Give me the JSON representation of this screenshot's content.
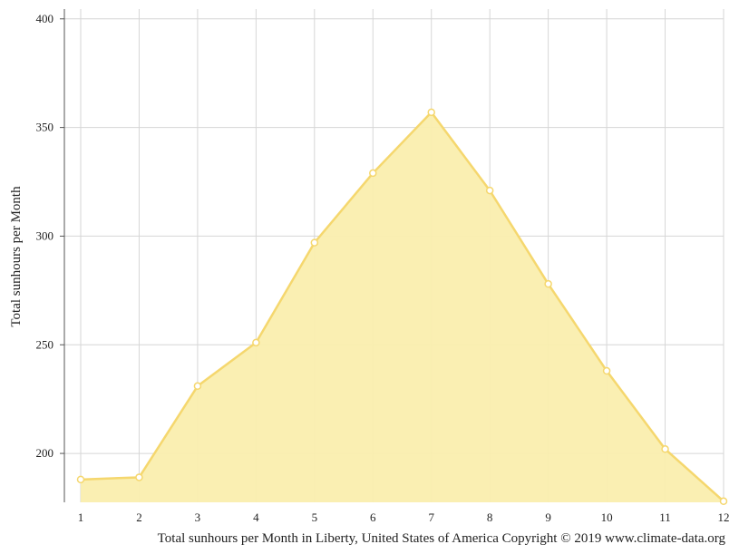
{
  "chart_data": {
    "type": "area",
    "title": "",
    "xlabel": "",
    "ylabel": "Total sunhours per Month",
    "caption": "Total sunhours per Month in Liberty, United States of America Copyright © 2019 www.climate-data.org",
    "x": [
      1,
      2,
      3,
      4,
      5,
      6,
      7,
      8,
      9,
      10,
      11,
      12
    ],
    "x_tick_labels": [
      "1",
      "2",
      "3",
      "4",
      "5",
      "6",
      "7",
      "8",
      "9",
      "10",
      "11",
      "12"
    ],
    "y_ticks": [
      200,
      250,
      300,
      350,
      400
    ],
    "y_tick_labels": [
      "200",
      "250",
      "300",
      "350",
      "400"
    ],
    "ylim": [
      177.5,
      404.5
    ],
    "xlim": [
      1,
      12
    ],
    "grid": true,
    "legend": "none",
    "series": [
      {
        "values": [
          188,
          189,
          231,
          251,
          297,
          329,
          357,
          321,
          278,
          238,
          202,
          178
        ],
        "color": "#f5d76e",
        "fill": "#faeeae"
      }
    ]
  }
}
